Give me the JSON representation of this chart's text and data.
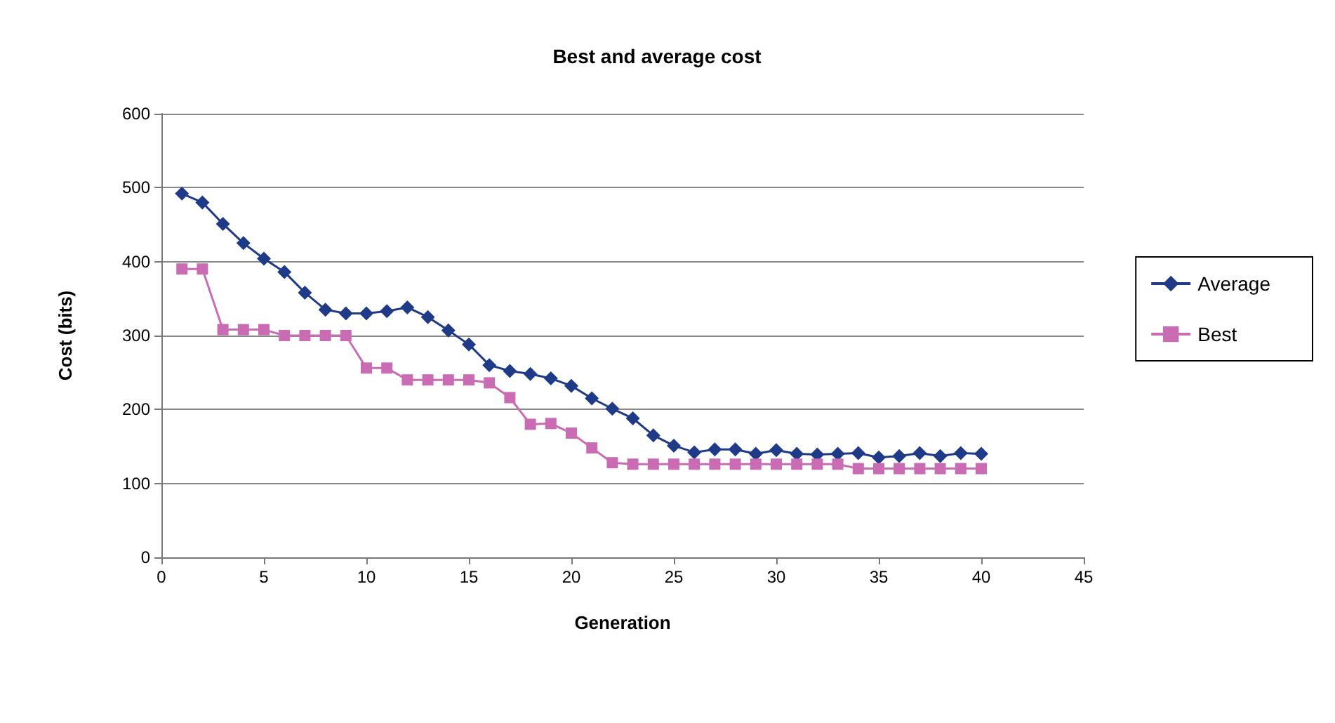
{
  "chart_data": {
    "type": "line",
    "title": "Best and average cost",
    "xlabel": "Generation",
    "ylabel": "Cost (bits)",
    "x": [
      1,
      2,
      3,
      4,
      5,
      6,
      7,
      8,
      9,
      10,
      11,
      12,
      13,
      14,
      15,
      16,
      17,
      18,
      19,
      20,
      21,
      22,
      23,
      24,
      25,
      26,
      27,
      28,
      29,
      30,
      31,
      32,
      33,
      34,
      35,
      36,
      37,
      38,
      39,
      40
    ],
    "series": [
      {
        "name": "Average",
        "color": "#1f3a87",
        "marker": "diamond",
        "values": [
          492,
          480,
          451,
          425,
          404,
          386,
          358,
          335,
          330,
          330,
          333,
          338,
          325,
          307,
          288,
          260,
          252,
          248,
          242,
          232,
          215,
          201,
          188,
          165,
          151,
          142,
          146,
          146,
          140,
          145,
          140,
          139,
          140,
          141,
          135,
          137,
          141,
          137,
          141,
          140
        ]
      },
      {
        "name": "Best",
        "color": "#c96cb4",
        "marker": "square",
        "values": [
          390,
          390,
          308,
          308,
          308,
          300,
          300,
          300,
          300,
          256,
          256,
          240,
          240,
          240,
          240,
          236,
          216,
          180,
          181,
          168,
          148,
          128,
          126,
          126,
          126,
          126,
          126,
          126,
          126,
          126,
          126,
          126,
          126,
          120,
          120,
          120,
          120,
          120,
          120,
          120
        ]
      }
    ],
    "xlim": [
      0,
      45
    ],
    "xticks": [
      0,
      5,
      10,
      15,
      20,
      25,
      30,
      35,
      40,
      45
    ],
    "ylim": [
      0,
      600
    ],
    "yticks": [
      0,
      100,
      200,
      300,
      400,
      500,
      600
    ],
    "grid": "y",
    "legend": "right",
    "line_style": "solid"
  }
}
